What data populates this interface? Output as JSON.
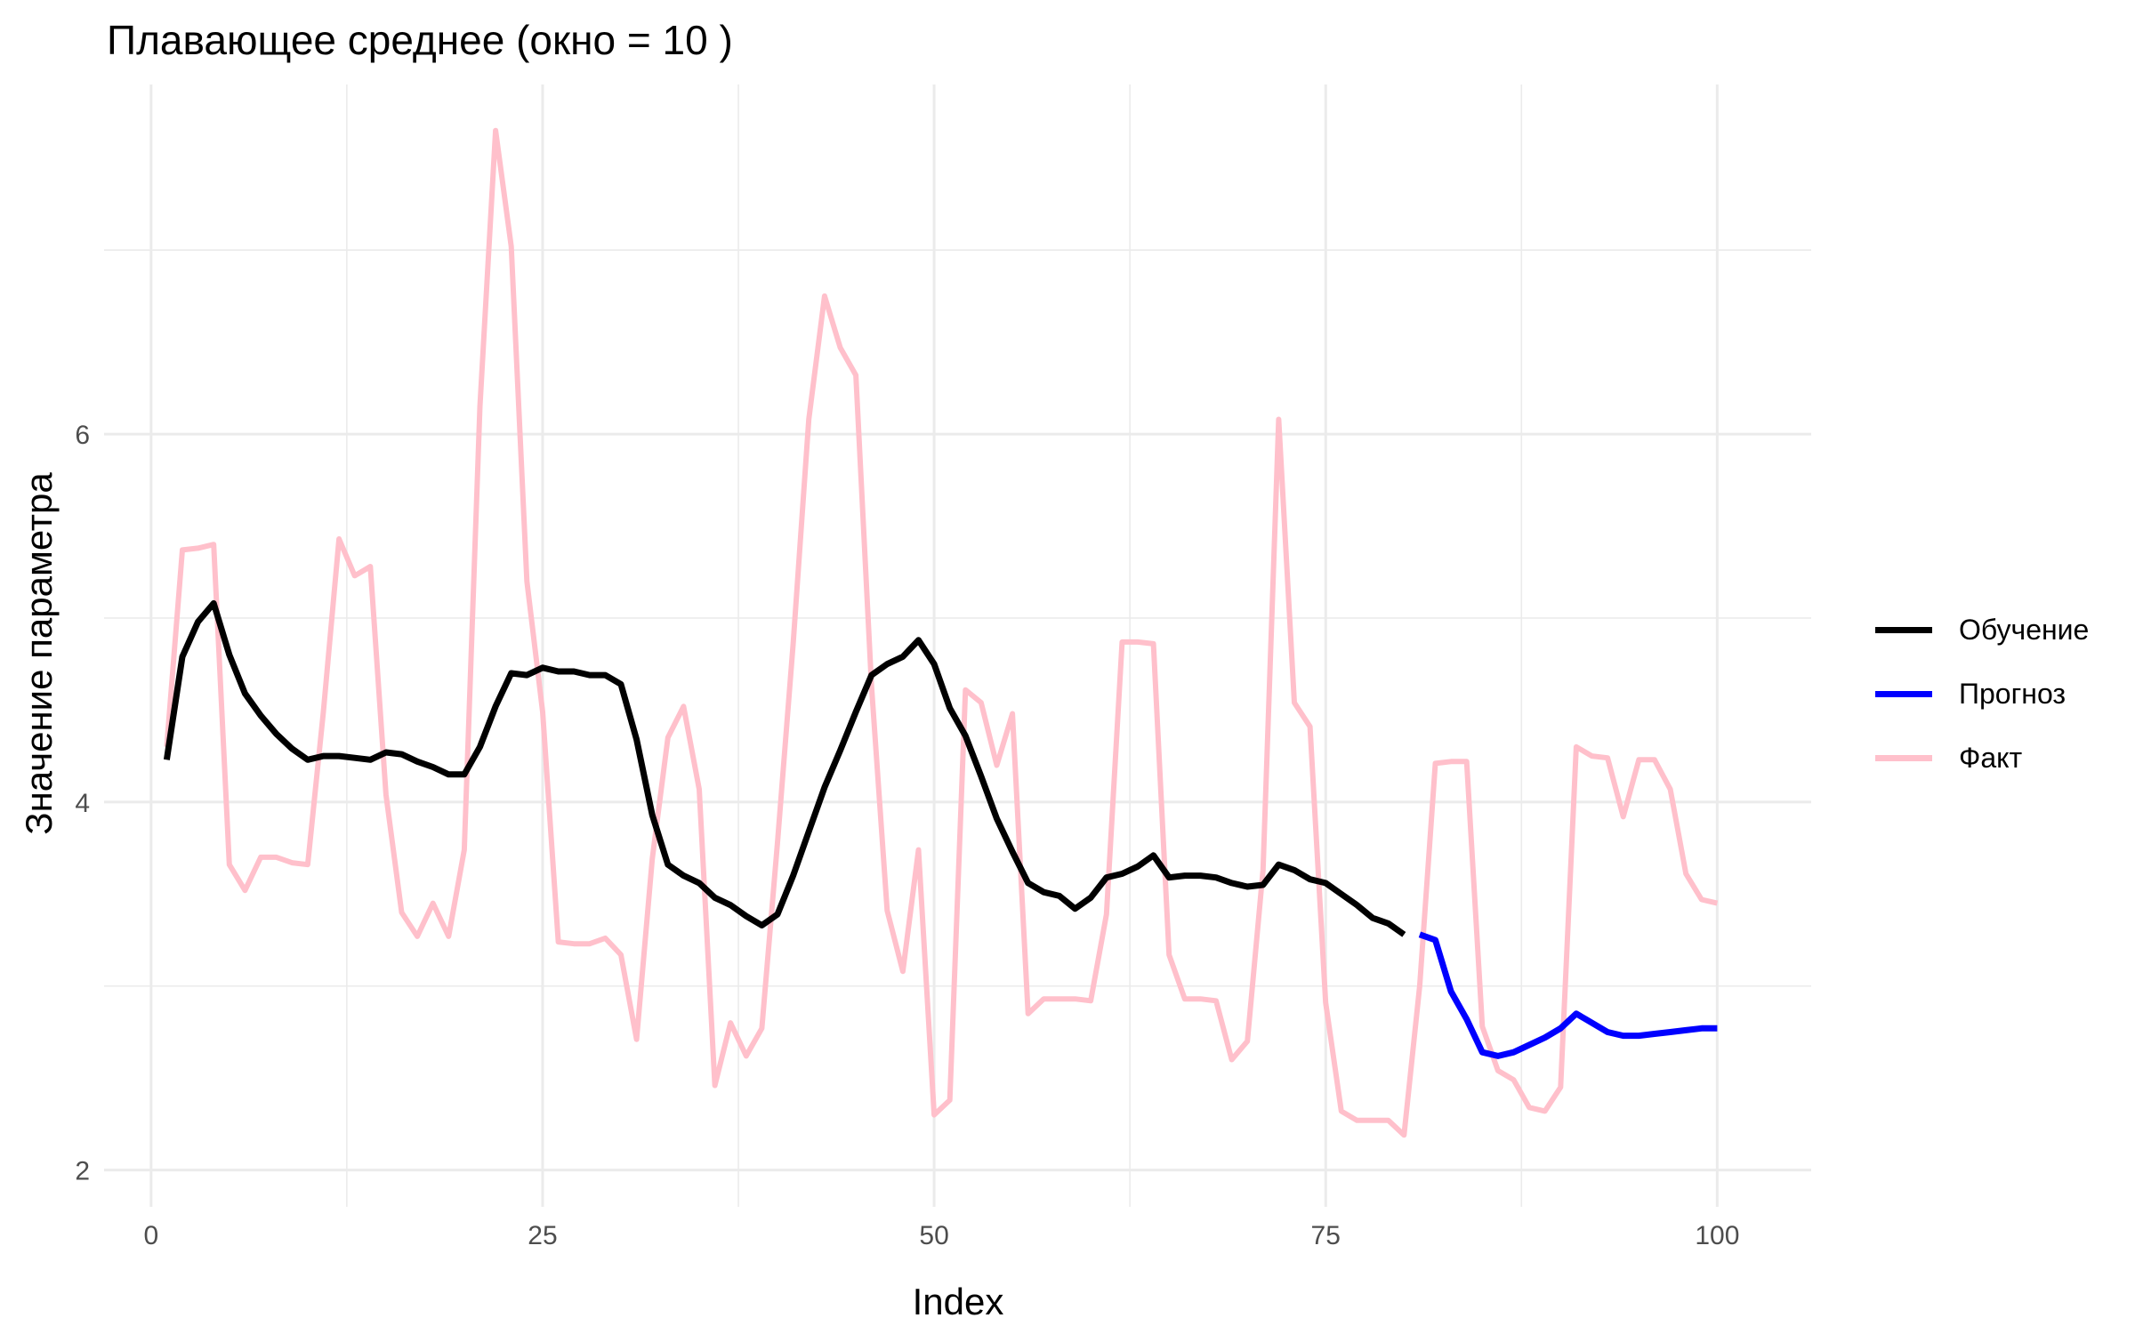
{
  "chart_data": {
    "type": "line",
    "title": "Плавающее среднее (окно = 10 )",
    "xlabel": "Index",
    "ylabel": "Значение параметра",
    "xlim": [
      -3,
      106
    ],
    "ylim": [
      1.8,
      7.9
    ],
    "x_ticks": [
      0,
      25,
      50,
      75,
      100
    ],
    "y_ticks": [
      2,
      4,
      6
    ],
    "x_ticks_minor": [
      12.5,
      37.5,
      62.5,
      87.5
    ],
    "y_ticks_minor": [
      3,
      5,
      7
    ],
    "grid": true,
    "legend_position": "right",
    "series": [
      {
        "name": "Обучение",
        "color": "#000000",
        "x_start": 1,
        "values": [
          4.23,
          4.79,
          4.98,
          5.08,
          4.8,
          4.59,
          4.47,
          4.37,
          4.29,
          4.23,
          4.25,
          4.25,
          4.24,
          4.23,
          4.27,
          4.26,
          4.22,
          4.19,
          4.15,
          4.15,
          4.3,
          4.52,
          4.7,
          4.69,
          4.73,
          4.71,
          4.71,
          4.69,
          4.69,
          4.64,
          4.34,
          3.93,
          3.66,
          3.6,
          3.56,
          3.48,
          3.44,
          3.38,
          3.33,
          3.39,
          3.6,
          3.84,
          4.08,
          4.28,
          4.49,
          4.69,
          4.75,
          4.79,
          4.88,
          4.75,
          4.51,
          4.36,
          4.14,
          3.91,
          3.73,
          3.56,
          3.51,
          3.49,
          3.42,
          3.48,
          3.59,
          3.61,
          3.65,
          3.71,
          3.59,
          3.6,
          3.6,
          3.59,
          3.56,
          3.54,
          3.55,
          3.66,
          3.63,
          3.58,
          3.56,
          3.5,
          3.44,
          3.37,
          3.34,
          3.28
        ]
      },
      {
        "name": "Прогноз",
        "color": "#0000ff",
        "x_start": 81,
        "values": [
          3.28,
          3.25,
          2.97,
          2.82,
          2.64,
          2.62,
          2.64,
          2.68,
          2.72,
          2.77,
          2.85,
          2.8,
          2.75,
          2.73,
          2.73,
          2.74,
          2.75,
          2.76,
          2.77,
          2.77
        ]
      },
      {
        "name": "Факт",
        "color": "#ffc0cb",
        "x_start": 1,
        "values": [
          4.3,
          5.37,
          5.38,
          5.4,
          3.66,
          3.52,
          3.7,
          3.7,
          3.67,
          3.66,
          4.49,
          5.43,
          5.23,
          5.28,
          4.04,
          3.4,
          3.27,
          3.45,
          3.27,
          3.74,
          6.15,
          7.65,
          7.02,
          5.2,
          4.49,
          3.24,
          3.23,
          3.23,
          3.26,
          3.17,
          2.71,
          3.69,
          4.35,
          4.52,
          4.07,
          2.46,
          2.8,
          2.62,
          2.77,
          3.78,
          4.86,
          6.08,
          6.75,
          6.47,
          6.32,
          4.63,
          3.41,
          3.08,
          3.74,
          2.3,
          2.38,
          4.61,
          4.54,
          4.2,
          4.48,
          2.85,
          2.93,
          2.93,
          2.93,
          2.92,
          3.39,
          4.87,
          4.87,
          4.86,
          3.17,
          2.93,
          2.93,
          2.92,
          2.6,
          2.7,
          3.63,
          6.08,
          4.54,
          4.41,
          2.91,
          2.32,
          2.27,
          2.27,
          2.27,
          2.19,
          3.0,
          4.21,
          4.22,
          4.22,
          2.78,
          2.54,
          2.49,
          2.34,
          2.32,
          2.45,
          4.3,
          4.25,
          4.24,
          3.92,
          4.23,
          4.23,
          4.07,
          3.61,
          3.47,
          3.45
        ]
      }
    ]
  }
}
